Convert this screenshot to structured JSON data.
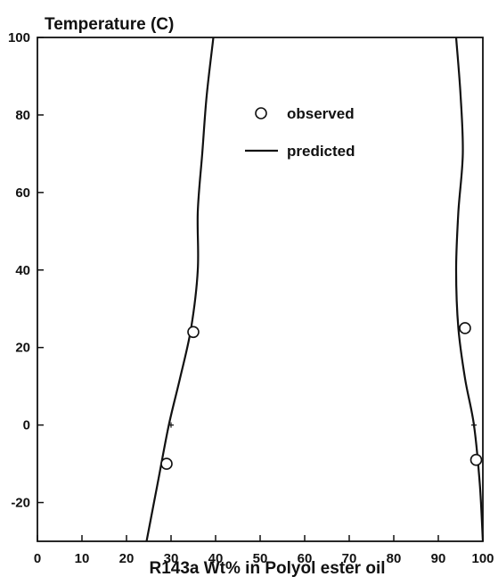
{
  "chart_data": {
    "type": "scatter",
    "ylabel": "Temperature (C)",
    "xlabel": "R143a Wt% in Polyol ester oil",
    "xlim": [
      0,
      100
    ],
    "ylim": [
      -30,
      100
    ],
    "xticks": [
      0,
      10,
      20,
      30,
      40,
      50,
      60,
      70,
      80,
      90,
      100
    ],
    "yticks": [
      -20,
      0,
      20,
      40,
      60,
      80,
      100
    ],
    "grid": false,
    "legend_position": "upper-right inside plot",
    "legend": [
      {
        "label": "observed",
        "marker": "circle"
      },
      {
        "label": "predicted",
        "marker": "line"
      }
    ],
    "series": [
      {
        "name": "observed",
        "kind": "points",
        "points": [
          [
            29,
            -10
          ],
          [
            35,
            24
          ],
          [
            96,
            25
          ],
          [
            98.5,
            -9
          ]
        ]
      },
      {
        "name": "predicted",
        "kind": "line",
        "curves": [
          [
            [
              24.5,
              -30
            ],
            [
              27,
              -15
            ],
            [
              29.5,
              0
            ],
            [
              32,
              12
            ],
            [
              34.5,
              25
            ],
            [
              36,
              40
            ],
            [
              36,
              55
            ],
            [
              37,
              70
            ],
            [
              38,
              85
            ],
            [
              39.5,
              100
            ]
          ],
          [
            [
              100,
              -30
            ],
            [
              99.3,
              -15
            ],
            [
              98,
              0
            ],
            [
              96,
              12
            ],
            [
              94.5,
              25
            ],
            [
              94,
              40
            ],
            [
              94.5,
              55
            ],
            [
              95.5,
              70
            ],
            [
              95,
              85
            ],
            [
              94,
              100
            ]
          ]
        ]
      }
    ],
    "minor_markers": [
      [
        30,
        0
      ],
      [
        98,
        0
      ]
    ]
  }
}
